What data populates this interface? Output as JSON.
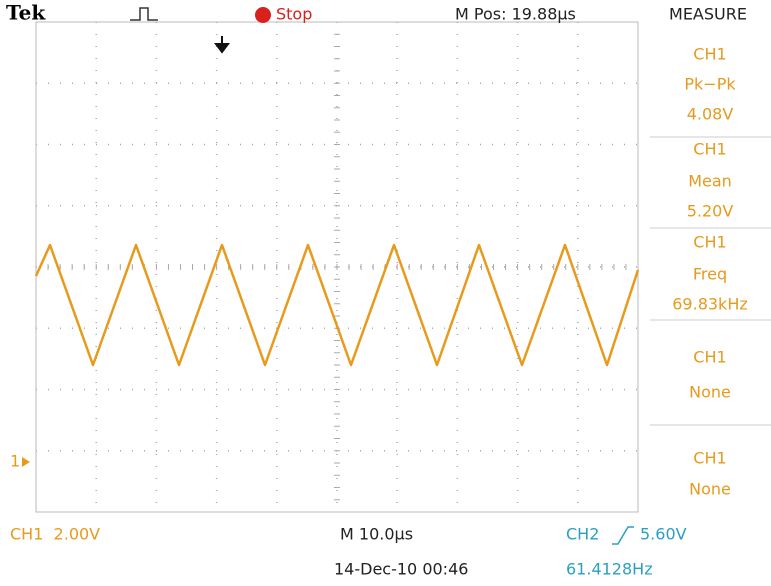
{
  "header": {
    "brand": "Tek",
    "status": "Stop",
    "position": "M Pos: 19.88µs"
  },
  "measure": {
    "title": "MEASURE",
    "items": [
      {
        "channel": "CH1",
        "type": "Pk−Pk",
        "value": "4.08V"
      },
      {
        "channel": "CH1",
        "type": "Mean",
        "value": "5.20V"
      },
      {
        "channel": "CH1",
        "type": "Freq",
        "value": "69.83kHz"
      },
      {
        "channel": "CH1",
        "type": "None"
      },
      {
        "channel": "CH1",
        "type": "None"
      }
    ]
  },
  "ch1_marker": "1",
  "footer": {
    "ch1_scale": "CH1  2.00V",
    "timebase": "M 10.0µs",
    "trigger_source": "CH2",
    "trigger_level": "5.60V",
    "date": "14-Dec-10 00:46",
    "trigger_freq": "61.4128Hz"
  }
}
